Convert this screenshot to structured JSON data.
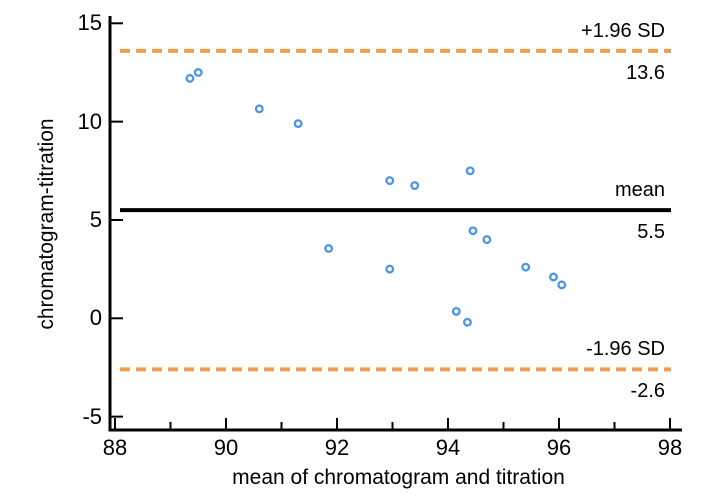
{
  "figure": {
    "background": "#ffffff"
  },
  "chart_data": {
    "type": "scatter",
    "title": "",
    "xlabel": "mean of chromatogram and titration",
    "ylabel": "chromatogram-titration",
    "xlim": [
      87.9,
      98.2
    ],
    "ylim": [
      -5.7,
      15.4
    ],
    "grid": false,
    "legend_position": null,
    "x_major_ticks": [
      88,
      90,
      92,
      94,
      96,
      98
    ],
    "x_minor_ticks": [
      89,
      91,
      93,
      95,
      97
    ],
    "y_major_ticks": [
      -5,
      0,
      5,
      10,
      15
    ],
    "points": [
      [
        89.35,
        12.2
      ],
      [
        89.5,
        12.5
      ],
      [
        90.6,
        10.65
      ],
      [
        91.3,
        9.9
      ],
      [
        91.85,
        3.55
      ],
      [
        92.95,
        7.0
      ],
      [
        93.4,
        6.75
      ],
      [
        92.95,
        2.5
      ],
      [
        94.15,
        0.35
      ],
      [
        94.35,
        -0.2
      ],
      [
        94.4,
        7.5
      ],
      [
        94.45,
        4.45
      ],
      [
        94.7,
        4.0
      ],
      [
        95.4,
        2.6
      ],
      [
        95.9,
        2.1
      ],
      [
        96.05,
        1.7
      ]
    ],
    "reference_lines": [
      {
        "id": "upper-loa",
        "value": 13.6,
        "label": "+1.96 SD",
        "value_label": "13.6",
        "style": "dashed",
        "color": "#F09D4F"
      },
      {
        "id": "mean",
        "value": 5.5,
        "label": "mean",
        "value_label": "5.5",
        "style": "solid",
        "color": "#000000"
      },
      {
        "id": "lower-loa",
        "value": -2.6,
        "label": "-1.96 SD",
        "value_label": "-2.6",
        "style": "dashed",
        "color": "#F09D4F"
      }
    ],
    "colors": {
      "point_stroke": "#4D94E6",
      "point_fill": "#ffffff",
      "axis": "#000000",
      "limit_line": "#F09D4F",
      "mean_line": "#000000",
      "text": "#000000"
    }
  }
}
